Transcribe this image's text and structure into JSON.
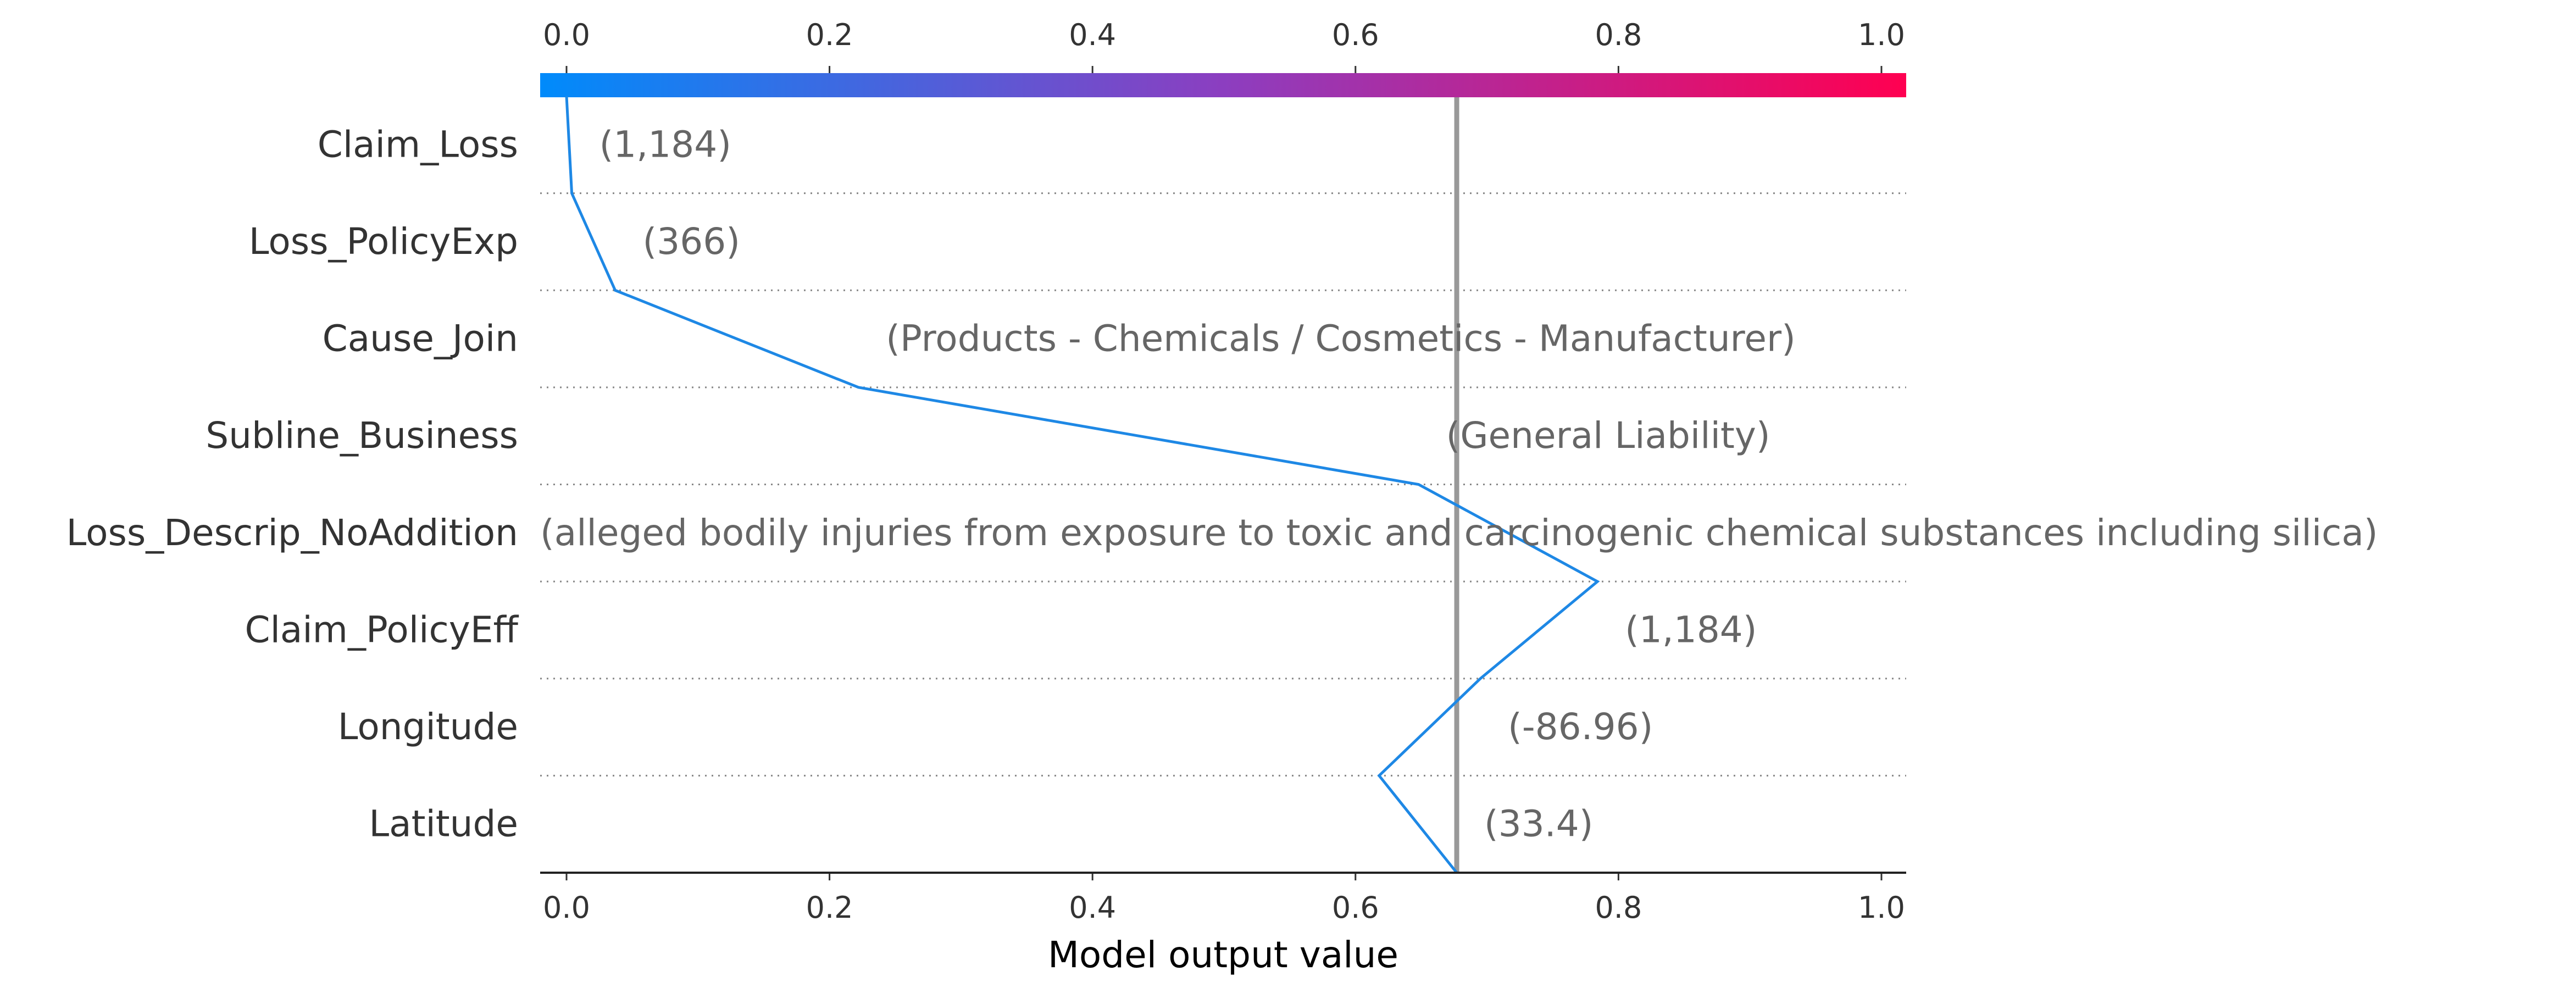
{
  "chart_data": {
    "type": "line",
    "subtype": "shap-decision-plot",
    "xlabel": "Model output value",
    "xlim": [
      -0.02,
      1.02
    ],
    "xticks": [
      "0.0",
      "0.2",
      "0.4",
      "0.6",
      "0.8",
      "1.0"
    ],
    "xtick_values": [
      0.0,
      0.2,
      0.4,
      0.6,
      0.8,
      1.0
    ],
    "base_value": 0.677,
    "base_value_note_color": "#999999",
    "colorbar": {
      "from": "#008bfb",
      "mid": "#8c3ec0",
      "to": "#ff0051",
      "range": [
        0,
        1
      ]
    },
    "line_color": "#1e88e5",
    "features": [
      {
        "name": "Claim_Loss",
        "value": "(1,184)"
      },
      {
        "name": "Loss_PolicyExp",
        "value": "(366)"
      },
      {
        "name": "Cause_Join",
        "value": "(Products - Chemicals / Cosmetics - Manufacturer)"
      },
      {
        "name": "Subline_Business",
        "value": "(General Liability)"
      },
      {
        "name": "Loss_Descrip_NoAddition",
        "value": "(alleged bodily injuries from exposure to toxic and carcinogenic chemical substances including silica)"
      },
      {
        "name": "Claim_PolicyEff",
        "value": "(1,184)"
      },
      {
        "name": "Longitude",
        "value": "(-86.96)"
      },
      {
        "name": "Latitude",
        "value": "(33.4)"
      }
    ],
    "path_x": [
      0.0,
      0.004,
      0.037,
      0.222,
      0.648,
      0.784,
      0.695,
      0.618,
      0.677
    ],
    "path_note": "path_x[0] is model output at top of plot; path_x[8] at bottom (base value). Each boundary between feature rows in order from top to bottom.",
    "grid": "dotted horizontal row separators"
  }
}
